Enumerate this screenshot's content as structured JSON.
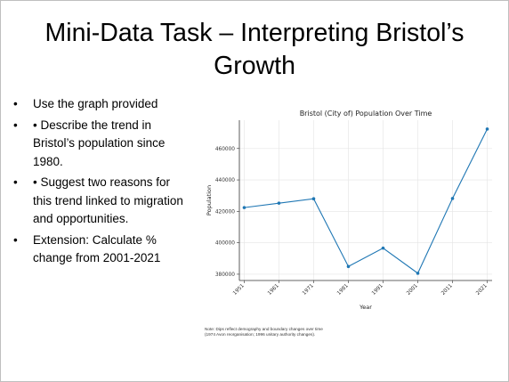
{
  "slide": {
    "title": "Mini-Data Task – Interpreting Bristol’s Growth",
    "bullets": [
      {
        "marker": "•",
        "text": "Use the graph provided"
      },
      {
        "marker": "•",
        "text": "• Describe the trend in Bristol’s population since 1980."
      },
      {
        "marker": "•",
        "text": "• Suggest two reasons for this trend linked to migration and opportunities."
      },
      {
        "marker": "•",
        "text": "Extension: Calculate % change from 2001-2021"
      }
    ],
    "note_line1": "Note: Dips reflect demography and boundary changes over time",
    "note_line2": "(1974 Avon reorganisation; 1996 unitary authority changes)."
  },
  "chart_data": {
    "type": "line",
    "title": "Bristol (City of) Population Over Time",
    "xlabel": "Year",
    "ylabel": "Population",
    "x": [
      1951,
      1961,
      1971,
      1981,
      1991,
      2001,
      2011,
      2021
    ],
    "x_tick_labels": [
      "1951",
      "1961",
      "1971",
      "1981",
      "1991",
      "2001",
      "2011",
      "2021"
    ],
    "y_ticks": [
      380000,
      400000,
      420000,
      440000,
      460000
    ],
    "y_tick_labels": [
      "380000",
      "400000",
      "420000",
      "440000",
      "460000"
    ],
    "ylim": [
      376000,
      478000
    ],
    "series": [
      {
        "values": [
          422400,
          425200,
          428000,
          384900,
          396600,
          380600,
          428200,
          472400
        ],
        "color": "#1f77b4"
      }
    ],
    "grid": true,
    "legend": "none"
  }
}
